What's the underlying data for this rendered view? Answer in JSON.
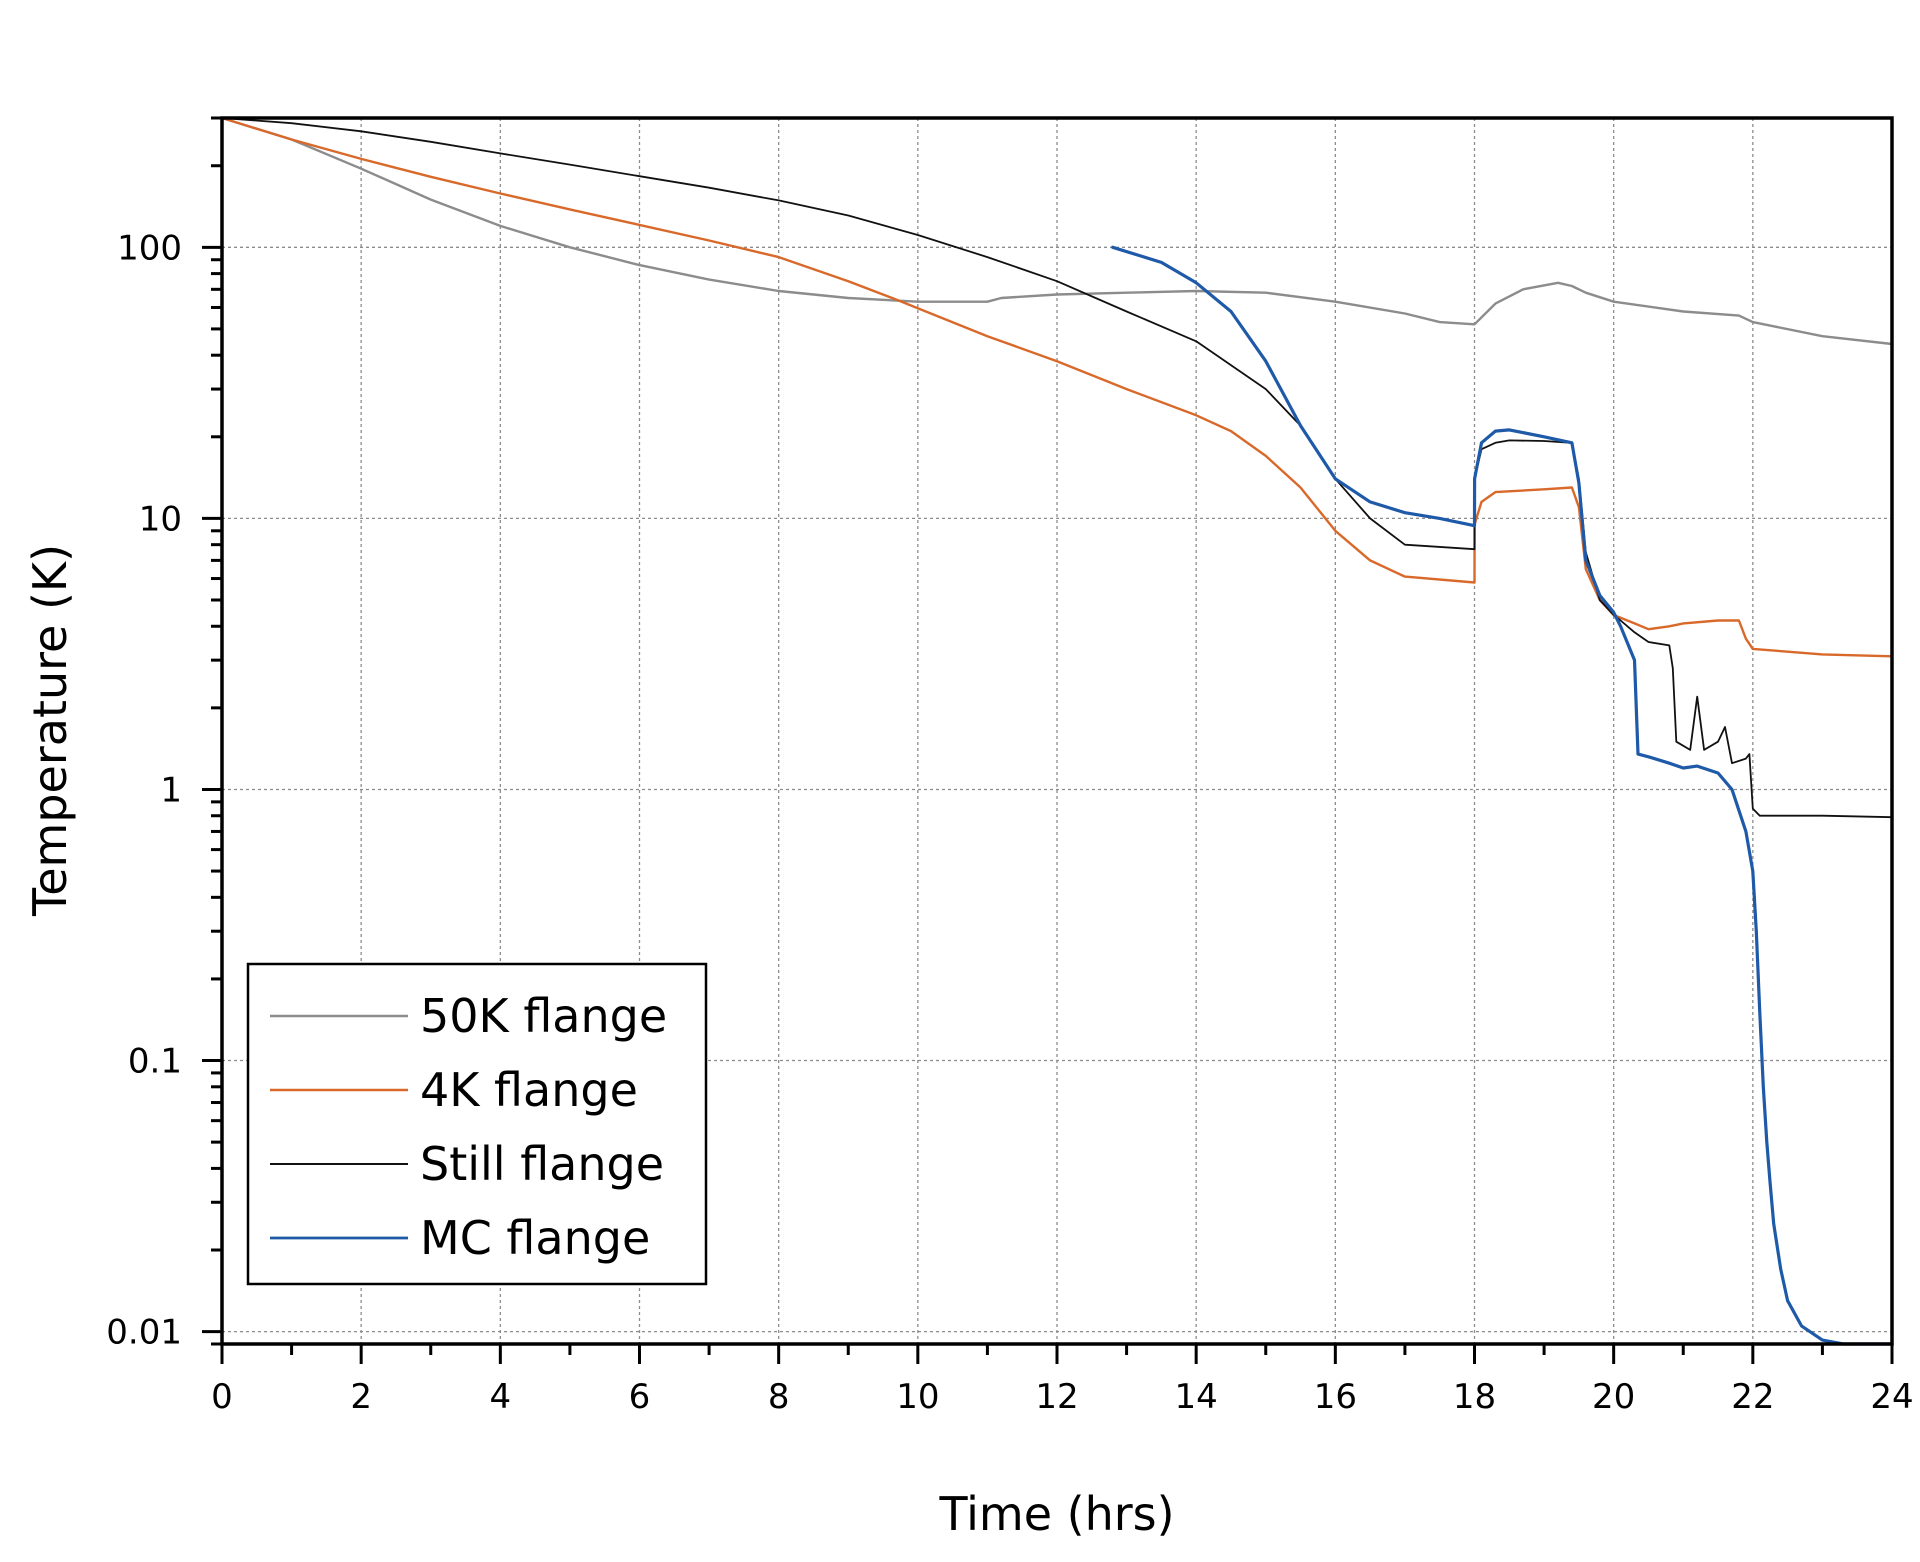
{
  "chart_data": {
    "type": "line",
    "title": "",
    "xlabel": "Time (hrs)",
    "ylabel": "Temperature (K)",
    "xlim": [
      0,
      24
    ],
    "ylim": [
      0.009,
      300
    ],
    "yscale": "log",
    "grid": true,
    "legend_position": "bottom-left",
    "x_ticks": [
      0,
      2,
      4,
      6,
      8,
      10,
      12,
      14,
      16,
      18,
      20,
      22,
      24
    ],
    "x_tick_labels": [
      "0",
      "2",
      "4",
      "6",
      "8",
      "10",
      "12",
      "14",
      "16",
      "18",
      "20",
      "22",
      "24"
    ],
    "y_ticks": [
      100,
      10,
      1,
      0.1,
      0.01
    ],
    "y_tick_labels": [
      "100",
      "10",
      "1",
      "0.1",
      "0.01"
    ],
    "series": [
      {
        "name": "50K flange",
        "color": "#8c8c8c",
        "width": 2.4,
        "x": [
          0,
          1,
          2,
          3,
          4,
          5,
          6,
          7,
          8,
          9,
          10,
          11,
          11.2,
          12,
          13,
          14,
          15,
          16,
          17,
          17.5,
          18,
          18.3,
          18.7,
          19.2,
          19.4,
          19.6,
          20,
          21,
          21.8,
          22,
          23,
          24
        ],
        "y": [
          300,
          250,
          195,
          150,
          120,
          100,
          86,
          76,
          69,
          65,
          63,
          63,
          65,
          67,
          68,
          69,
          68,
          63,
          57,
          53,
          52,
          62,
          70,
          74,
          72,
          68,
          63,
          58,
          56,
          53,
          47,
          44
        ]
      },
      {
        "name": "4K flange",
        "color": "#d9692b",
        "width": 2.4,
        "x": [
          0,
          1,
          2,
          3,
          4,
          5,
          6,
          7,
          8,
          9,
          9.7,
          11,
          12,
          13,
          14,
          14.5,
          15,
          15.5,
          16,
          16.5,
          17,
          18,
          18.001,
          18.1,
          18.3,
          19,
          19.4,
          19.5,
          19.6,
          19.8,
          20,
          20.3,
          20.5,
          20.8,
          21,
          21.5,
          21.8,
          21.9,
          22,
          23,
          24
        ],
        "y": [
          300,
          250,
          212,
          182,
          158,
          138,
          121,
          106,
          92,
          75,
          64,
          47,
          38,
          30,
          24,
          21,
          17,
          13,
          9,
          7,
          6.1,
          5.8,
          9.5,
          11.5,
          12.5,
          12.8,
          13,
          11,
          6.5,
          5,
          4.4,
          4.1,
          3.9,
          4,
          4.1,
          4.2,
          4.2,
          3.6,
          3.3,
          3.15,
          3.1
        ]
      },
      {
        "name": "Still flange",
        "color": "#111111",
        "width": 1.8,
        "x": [
          0,
          1,
          2,
          3,
          4,
          5,
          6,
          7,
          8,
          9,
          10,
          11,
          12,
          13,
          14,
          15,
          15.5,
          16,
          16.5,
          17,
          18,
          18.001,
          18.1,
          18.3,
          18.5,
          19,
          19.4,
          19.5,
          19.6,
          19.8,
          20,
          20.1,
          20.3,
          20.5,
          20.8,
          20.85,
          20.9,
          21.1,
          21.2,
          21.3,
          21.5,
          21.6,
          21.7,
          21.9,
          21.95,
          22,
          22.1,
          23,
          24
        ],
        "y": [
          300,
          287,
          268,
          245,
          222,
          202,
          183,
          166,
          149,
          131,
          111,
          92,
          75,
          58,
          45,
          30,
          22,
          14,
          10,
          8,
          7.7,
          14,
          18,
          19,
          19.4,
          19.3,
          19,
          14,
          7.5,
          5,
          4.4,
          4.2,
          3.8,
          3.5,
          3.4,
          2.8,
          1.5,
          1.4,
          2.2,
          1.4,
          1.5,
          1.7,
          1.25,
          1.3,
          1.35,
          0.85,
          0.8,
          0.8,
          0.79
        ]
      },
      {
        "name": "MC flange",
        "color": "#1e5aa8",
        "width": 3.2,
        "x": [
          12.8,
          13.5,
          14,
          14.5,
          15,
          15.5,
          16,
          16.5,
          17,
          17.5,
          18,
          18.001,
          18.1,
          18.3,
          18.5,
          19,
          19.4,
          19.5,
          19.6,
          19.8,
          20,
          20.1,
          20.3,
          20.35,
          20.5,
          20.8,
          21,
          21.2,
          21.5,
          21.7,
          21.9,
          22,
          22.05,
          22.1,
          22.15,
          22.2,
          22.25,
          22.3,
          22.4,
          22.5,
          22.7,
          23,
          23.3,
          23.6,
          24
        ],
        "y": [
          100,
          88,
          74,
          58,
          38,
          22,
          14,
          11.5,
          10.5,
          10,
          9.4,
          14,
          19,
          21,
          21.2,
          20,
          19,
          13.5,
          7,
          5.2,
          4.5,
          4,
          3,
          1.35,
          1.32,
          1.25,
          1.2,
          1.22,
          1.15,
          1.0,
          0.7,
          0.5,
          0.3,
          0.15,
          0.08,
          0.05,
          0.035,
          0.025,
          0.017,
          0.013,
          0.0105,
          0.0093,
          0.009,
          0.009,
          0.009
        ]
      }
    ]
  }
}
